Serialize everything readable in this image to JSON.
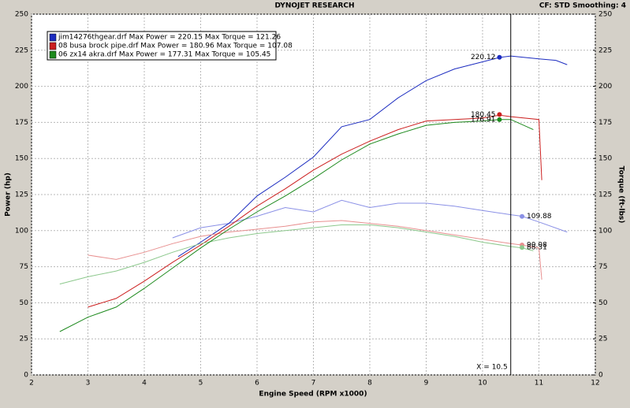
{
  "chart_data": {
    "type": "line",
    "title": "DYNOJET RESEARCH",
    "settings_text": "CF: STD  Smoothing: 4",
    "xlabel": "Engine Speed (RPM x1000)",
    "ylabel": "Power (hp)",
    "y2label": "Torque (ft-lbs)",
    "xlim": [
      2,
      12
    ],
    "xticks": [
      2,
      3,
      4,
      5,
      6,
      7,
      8,
      9,
      10,
      11,
      12
    ],
    "ylim": [
      0,
      250
    ],
    "yticks": [
      0,
      25,
      50,
      75,
      100,
      125,
      150,
      175,
      200,
      225,
      250
    ],
    "y2lim": [
      0,
      250
    ],
    "y2ticks": [
      0,
      25,
      50,
      75,
      100,
      125,
      150,
      175,
      200,
      225,
      250
    ],
    "grid": true,
    "runs": [
      {
        "name": "jim14276thgear.drf Max Power = 220.15 Max Torque = 121.26",
        "color": "#1c2cc0",
        "torque_color": "#8a90e6",
        "power": {
          "x": [
            4.6,
            5,
            5.5,
            6,
            6.5,
            7,
            7.5,
            8,
            8.5,
            9,
            9.5,
            10,
            10.3,
            10.5,
            11,
            11.3,
            11.5
          ],
          "values": [
            82,
            92,
            105,
            124,
            137,
            151,
            172,
            177,
            192,
            204,
            212,
            217,
            220,
            221,
            219,
            218,
            215
          ]
        },
        "torque": {
          "x": [
            4.5,
            5,
            5.5,
            6,
            6.5,
            7,
            7.5,
            8,
            8.5,
            9,
            9.5,
            10,
            10.5,
            10.7,
            11,
            11.5
          ],
          "values": [
            95,
            102,
            105,
            110,
            116,
            113,
            121,
            116,
            119,
            119,
            117,
            114,
            111,
            110,
            106,
            99
          ]
        }
      },
      {
        "name": "08 busa brock pipe.drf Max Power = 180.96 Max Torque = 107.08",
        "color": "#cc2020",
        "torque_color": "#e89090",
        "power": {
          "x": [
            3,
            3.5,
            4,
            4.5,
            5,
            5.5,
            6,
            6.5,
            7,
            7.5,
            8,
            8.5,
            9,
            9.5,
            10,
            10.3,
            10.5,
            11,
            11.05
          ],
          "values": [
            47,
            53,
            65,
            78,
            90,
            103,
            117,
            129,
            142,
            153,
            162,
            170,
            176,
            177,
            178,
            180,
            179,
            177,
            135
          ]
        },
        "torque": {
          "x": [
            3,
            3.5,
            4,
            4.5,
            5,
            5.5,
            6,
            6.5,
            7,
            7.5,
            8,
            8.5,
            9,
            9.5,
            10,
            10.5,
            10.7,
            11,
            11.05
          ],
          "values": [
            83,
            80,
            85,
            91,
            96,
            99,
            101,
            103,
            106,
            107,
            105,
            103,
            100,
            97,
            94,
            91,
            90,
            88,
            66
          ]
        }
      },
      {
        "name": "06 zx14 akra.drf Max Power = 177.31 Max Torque = 105.45",
        "color": "#1e8a1e",
        "torque_color": "#8cc88c",
        "power": {
          "x": [
            2.5,
            3,
            3.5,
            4,
            4.5,
            5,
            5.5,
            6,
            6.5,
            7,
            7.5,
            8,
            8.5,
            9,
            9.5,
            10,
            10.3,
            10.5,
            10.9
          ],
          "values": [
            30,
            40,
            47,
            60,
            74,
            88,
            101,
            113,
            124,
            136,
            149,
            160,
            167,
            173,
            175,
            176,
            177,
            177,
            170
          ]
        },
        "torque": {
          "x": [
            2.5,
            3,
            3.5,
            4,
            4.5,
            5,
            5.5,
            6,
            6.5,
            7,
            7.5,
            8,
            8.5,
            9,
            9.5,
            10,
            10.5,
            10.7,
            10.9
          ],
          "values": [
            63,
            68,
            72,
            78,
            85,
            91,
            95,
            98,
            100,
            102,
            104,
            104,
            102,
            99,
            96,
            92,
            89,
            88,
            86
          ]
        }
      }
    ],
    "markers": [
      {
        "x": 10.3,
        "value": 220.12,
        "color": "#1c2cc0"
      },
      {
        "x": 10.3,
        "value": 180.45,
        "color": "#cc2020"
      },
      {
        "x": 10.3,
        "value": 176.91,
        "color": "#1e8a1e"
      },
      {
        "x": 10.7,
        "value": 109.88,
        "color": "#8a90e6"
      },
      {
        "x": 10.7,
        "value": 90.08,
        "color": "#e89090"
      },
      {
        "x": 10.7,
        "value": 88.31,
        "color": "#8cc88c"
      }
    ],
    "cursor": {
      "value": 10.5,
      "label": "X = 10.5"
    }
  }
}
